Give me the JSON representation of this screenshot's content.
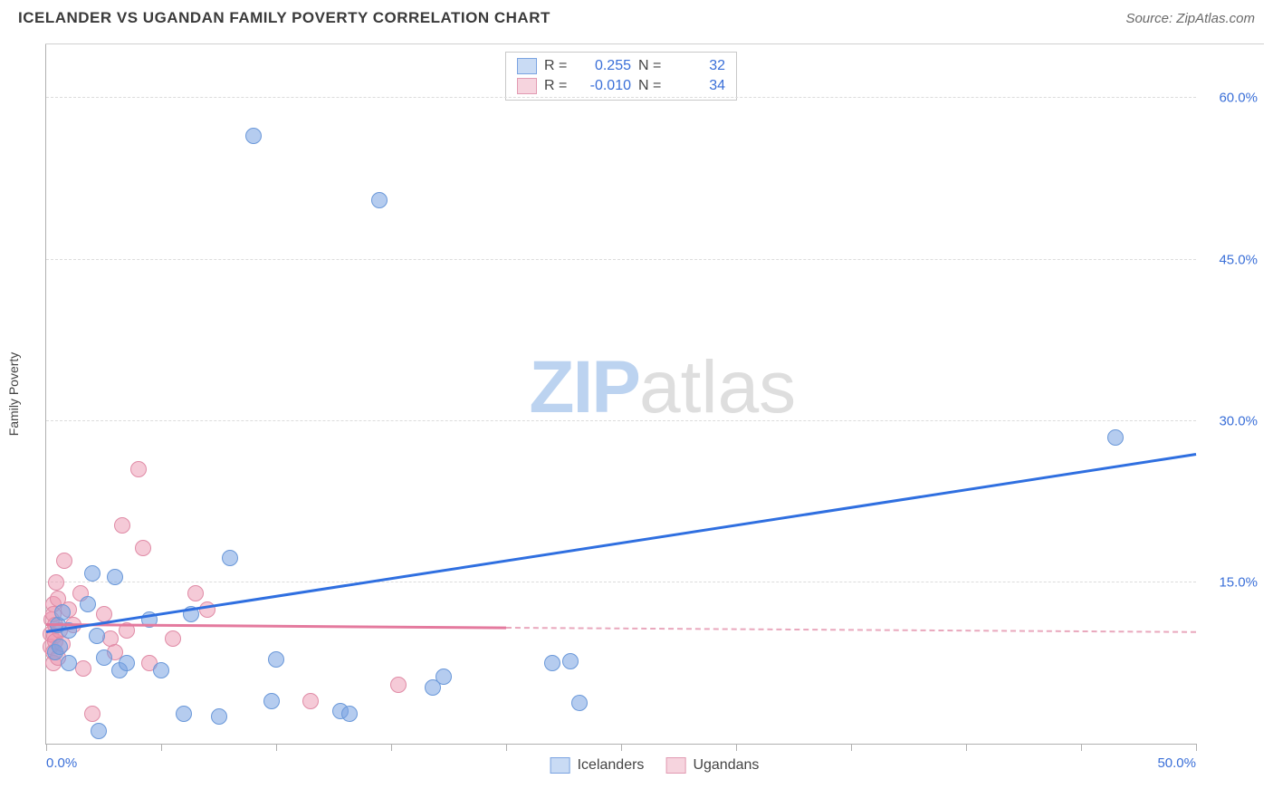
{
  "title": "ICELANDER VS UGANDAN FAMILY POVERTY CORRELATION CHART",
  "source": "Source: ZipAtlas.com",
  "ylabel": "Family Poverty",
  "watermark": {
    "zip": "ZIP",
    "atlas": "atlas",
    "zip_color": "#bcd3f0",
    "atlas_color": "#dedede"
  },
  "colors": {
    "blue_fill": "rgba(120,163,225,0.55)",
    "blue_stroke": "#6a98d9",
    "pink_fill": "rgba(236,150,175,0.5)",
    "pink_stroke": "#e08ba6",
    "blue_line": "#2f6fe0",
    "pink_line": "#e47a9e",
    "pink_dash": "#e9a8bd",
    "axis_label": "#3a6fd8",
    "grid": "#dcdcdc",
    "swatch_blue_fill": "#c9dbf4",
    "swatch_blue_border": "#7aa3e1",
    "swatch_pink_fill": "#f6d4de",
    "swatch_pink_border": "#e29ab2"
  },
  "axes": {
    "xmin": 0,
    "xmax": 50,
    "ymin": 0,
    "ymax": 65,
    "x_ticks": [
      0,
      5,
      10,
      15,
      20,
      25,
      30,
      35,
      40,
      45,
      50
    ],
    "x_tick_labels": {
      "0": "0.0%",
      "50": "50.0%"
    },
    "y_ticks": [
      15,
      30,
      45,
      60
    ],
    "y_tick_labels": {
      "15": "15.0%",
      "30": "30.0%",
      "45": "45.0%",
      "60": "60.0%"
    }
  },
  "top_legend": [
    {
      "swatch": "blue",
      "r_label": "R =",
      "r_val": "0.255",
      "n_label": "N =",
      "n_val": "32"
    },
    {
      "swatch": "pink",
      "r_label": "R =",
      "r_val": "-0.010",
      "n_label": "N =",
      "n_val": "34"
    }
  ],
  "bottom_legend": [
    {
      "swatch": "blue",
      "label": "Icelanders"
    },
    {
      "swatch": "pink",
      "label": "Ugandans"
    }
  ],
  "trend_lines": {
    "blue": {
      "x1": 0,
      "y1": 10.3,
      "x2": 50,
      "y2": 26.8
    },
    "pink_solid": {
      "x1": 0,
      "y1": 11.0,
      "x2": 20,
      "y2": 10.7
    },
    "pink_dash": {
      "x1": 20,
      "y1": 10.7,
      "x2": 50,
      "y2": 10.3
    }
  },
  "point_radius": 8,
  "series": {
    "blue": [
      {
        "x": 0.4,
        "y": 8.5
      },
      {
        "x": 0.5,
        "y": 11.0
      },
      {
        "x": 0.6,
        "y": 9.0
      },
      {
        "x": 0.7,
        "y": 12.2
      },
      {
        "x": 1.0,
        "y": 7.5
      },
      {
        "x": 1.0,
        "y": 10.5
      },
      {
        "x": 1.8,
        "y": 13.0
      },
      {
        "x": 2.0,
        "y": 15.8
      },
      {
        "x": 2.2,
        "y": 10.0
      },
      {
        "x": 2.3,
        "y": 1.2
      },
      {
        "x": 2.5,
        "y": 8.0
      },
      {
        "x": 3.0,
        "y": 15.5
      },
      {
        "x": 3.2,
        "y": 6.8
      },
      {
        "x": 3.5,
        "y": 7.5
      },
      {
        "x": 4.5,
        "y": 11.5
      },
      {
        "x": 5.0,
        "y": 6.8
      },
      {
        "x": 6.0,
        "y": 2.8
      },
      {
        "x": 6.3,
        "y": 12.0
      },
      {
        "x": 7.5,
        "y": 2.5
      },
      {
        "x": 8.0,
        "y": 17.3
      },
      {
        "x": 9.0,
        "y": 56.5
      },
      {
        "x": 9.8,
        "y": 4.0
      },
      {
        "x": 10.0,
        "y": 7.8
      },
      {
        "x": 12.8,
        "y": 3.0
      },
      {
        "x": 13.2,
        "y": 2.8
      },
      {
        "x": 14.5,
        "y": 50.5
      },
      {
        "x": 16.8,
        "y": 5.2
      },
      {
        "x": 17.3,
        "y": 6.2
      },
      {
        "x": 22.0,
        "y": 7.5
      },
      {
        "x": 22.8,
        "y": 7.7
      },
      {
        "x": 23.2,
        "y": 3.8
      },
      {
        "x": 46.5,
        "y": 28.5
      }
    ],
    "pink": [
      {
        "x": 0.2,
        "y": 9.0
      },
      {
        "x": 0.2,
        "y": 10.2
      },
      {
        "x": 0.25,
        "y": 11.5
      },
      {
        "x": 0.3,
        "y": 8.5
      },
      {
        "x": 0.3,
        "y": 13.0
      },
      {
        "x": 0.3,
        "y": 12.0
      },
      {
        "x": 0.3,
        "y": 7.5
      },
      {
        "x": 0.35,
        "y": 10.0
      },
      {
        "x": 0.4,
        "y": 9.5
      },
      {
        "x": 0.4,
        "y": 11.0
      },
      {
        "x": 0.45,
        "y": 15.0
      },
      {
        "x": 0.5,
        "y": 13.5
      },
      {
        "x": 0.5,
        "y": 8.0
      },
      {
        "x": 0.6,
        "y": 10.5
      },
      {
        "x": 0.7,
        "y": 9.3
      },
      {
        "x": 0.8,
        "y": 17.0
      },
      {
        "x": 1.0,
        "y": 12.5
      },
      {
        "x": 1.2,
        "y": 11.0
      },
      {
        "x": 1.5,
        "y": 14.0
      },
      {
        "x": 1.6,
        "y": 7.0
      },
      {
        "x": 2.0,
        "y": 2.8
      },
      {
        "x": 2.5,
        "y": 12.0
      },
      {
        "x": 2.8,
        "y": 9.8
      },
      {
        "x": 3.0,
        "y": 8.5
      },
      {
        "x": 3.3,
        "y": 20.3
      },
      {
        "x": 3.5,
        "y": 10.5
      },
      {
        "x": 4.0,
        "y": 25.5
      },
      {
        "x": 4.2,
        "y": 18.2
      },
      {
        "x": 4.5,
        "y": 7.5
      },
      {
        "x": 5.5,
        "y": 9.8
      },
      {
        "x": 6.5,
        "y": 14.0
      },
      {
        "x": 7.0,
        "y": 12.5
      },
      {
        "x": 11.5,
        "y": 4.0
      },
      {
        "x": 15.3,
        "y": 5.5
      }
    ]
  }
}
